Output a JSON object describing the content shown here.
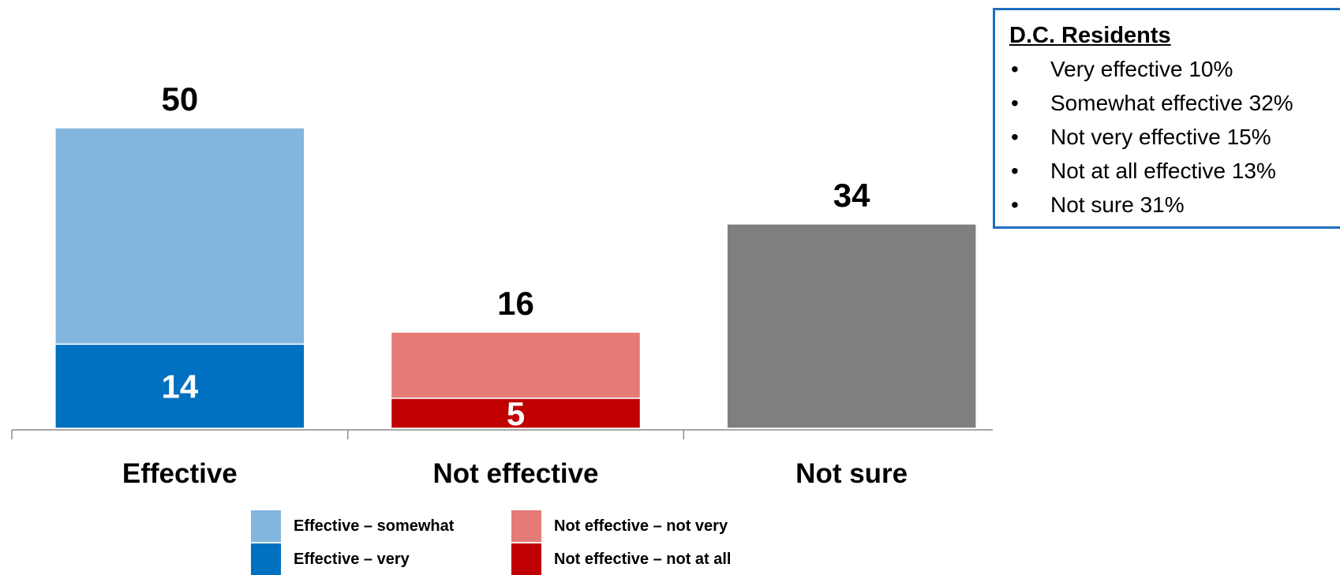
{
  "chart_data": {
    "type": "bar",
    "stacked": true,
    "categories": [
      "Effective",
      "Not effective",
      "Not sure"
    ],
    "totals": [
      50,
      16,
      34
    ],
    "series": [
      {
        "name": "Effective – very",
        "values": [
          14,
          null,
          null
        ],
        "color": "#0070c0"
      },
      {
        "name": "Effective – somewhat",
        "values": [
          36,
          null,
          null
        ],
        "color": "#82b6df"
      },
      {
        "name": "Not effective – not at all",
        "values": [
          null,
          5,
          null
        ],
        "color": "#c00000"
      },
      {
        "name": "Not effective – not very",
        "values": [
          null,
          11,
          null
        ],
        "color": "#e47b77"
      },
      {
        "values": [
          null,
          null,
          34
        ],
        "color": "#7f7f7f"
      }
    ],
    "segment_labels": [
      {
        "category": "Effective",
        "value": "14"
      },
      {
        "category": "Not effective",
        "value": "5"
      }
    ],
    "ylim": [
      0,
      50
    ],
    "xlabel": "",
    "ylabel": "",
    "grid": false,
    "legend_position": "bottom"
  },
  "legend": [
    {
      "label": "Effective – somewhat",
      "color": "#82b6df"
    },
    {
      "label": "Effective – very",
      "color": "#0070c0"
    },
    {
      "label": "Not effective – not very",
      "color": "#e47b77"
    },
    {
      "label": "Not effective – not at all",
      "color": "#c00000"
    }
  ],
  "infobox": {
    "title": "D.C. Residents",
    "items": [
      "Very effective 10%",
      "Somewhat effective 32%",
      "Not very effective 15%",
      "Not at all effective 13%",
      "Not sure 31%"
    ],
    "bullet": "•",
    "border_color": "#1f6fbf"
  }
}
